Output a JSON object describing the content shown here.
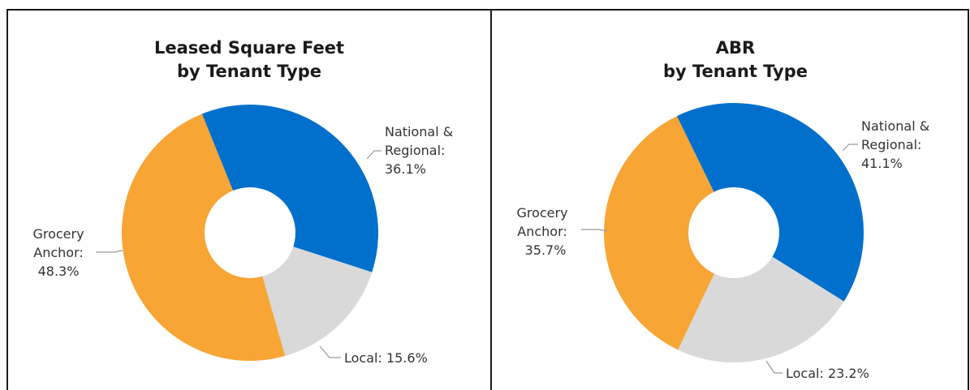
{
  "colors": {
    "national": "#0070CC",
    "local": "#D9D9D9",
    "grocery": "#F7A535"
  },
  "chart_data": [
    {
      "type": "pie",
      "title_lines": [
        "Leased Square Feet",
        "by Tenant Type"
      ],
      "slices": [
        {
          "name": "National & Regional",
          "label_lines": [
            "National &",
            "Regional:",
            "36.1%"
          ],
          "value": 36.1,
          "color": "#0070CC"
        },
        {
          "name": "Local",
          "label_lines": [
            "Local: 15.6%"
          ],
          "value": 15.6,
          "color": "#D9D9D9"
        },
        {
          "name": "Grocery Anchor",
          "label_lines": [
            "Grocery",
            "Anchor:",
            "48.3%"
          ],
          "value": 48.3,
          "color": "#F7A535"
        }
      ]
    },
    {
      "type": "pie",
      "title_lines": [
        "ABR",
        "by Tenant Type"
      ],
      "slices": [
        {
          "name": "National & Regional",
          "label_lines": [
            "National &",
            "Regional:",
            "41.1%"
          ],
          "value": 41.1,
          "color": "#0070CC"
        },
        {
          "name": "Local",
          "label_lines": [
            "Local: 23.2%"
          ],
          "value": 23.2,
          "color": "#D9D9D9"
        },
        {
          "name": "Grocery Anchor",
          "label_lines": [
            "Grocery",
            "Anchor:",
            "35.7%"
          ],
          "value": 35.7,
          "color": "#F7A535"
        }
      ]
    }
  ]
}
